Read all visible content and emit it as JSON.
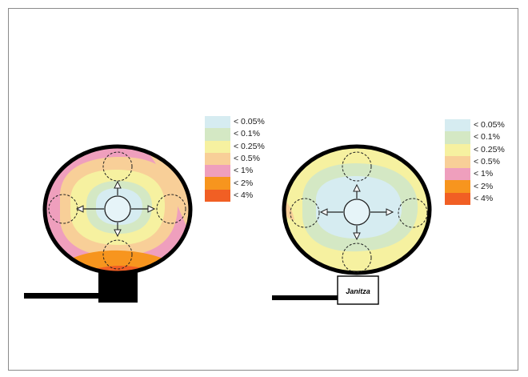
{
  "legend": [
    {
      "label": "< 0.05%",
      "color": "#d6ecf1"
    },
    {
      "label": "< 0.1%",
      "color": "#d4e8c4"
    },
    {
      "label": "< 0.25%",
      "color": "#f6f1a0"
    },
    {
      "label": "< 0.5%",
      "color": "#f8cf98"
    },
    {
      "label": "< 1%",
      "color": "#ef9fbd"
    },
    {
      "label": "< 2%",
      "color": "#f7951e"
    },
    {
      "label": "< 4%",
      "color": "#f15f24"
    }
  ],
  "right_device": {
    "brand": "Janitza"
  }
}
